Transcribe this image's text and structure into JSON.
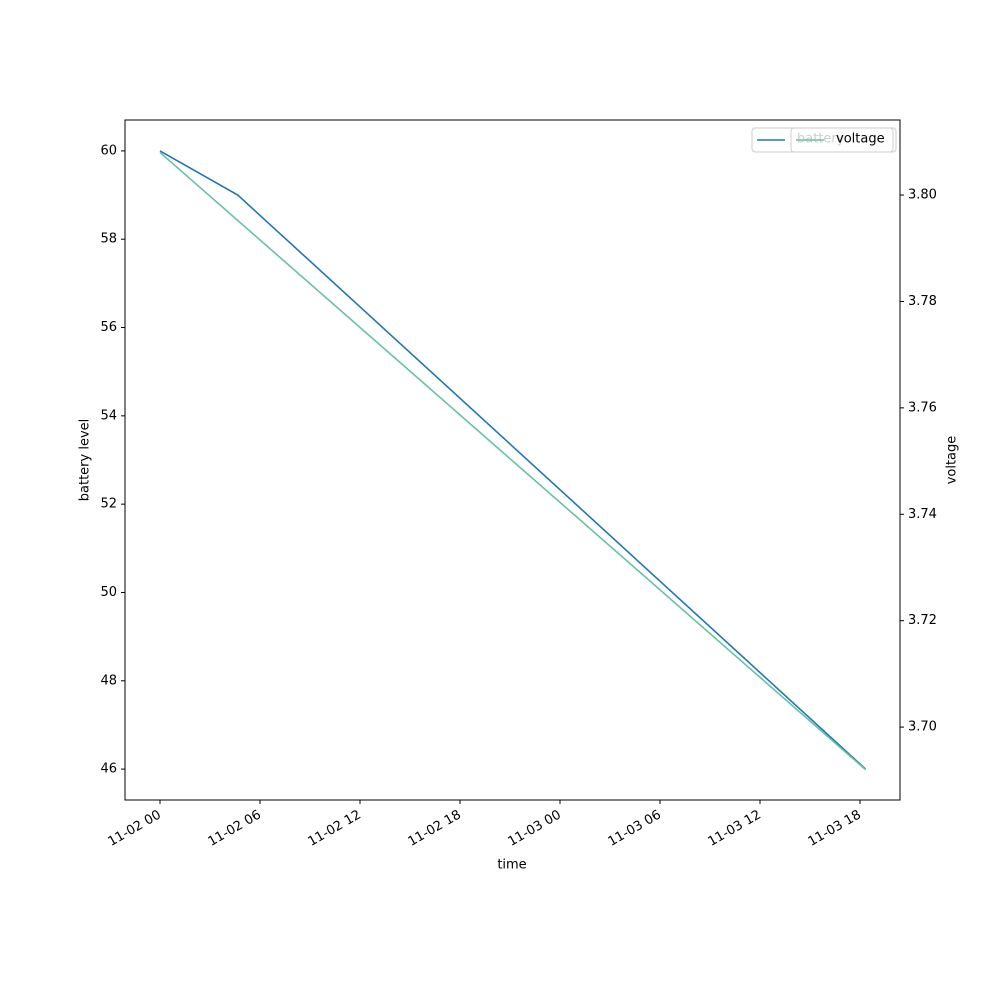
{
  "chart_data": {
    "type": "line",
    "x_label": "time",
    "y_label": "battery level",
    "y2_label": "voltage",
    "series": [
      {
        "name": "battery",
        "color": "#1f77b4",
        "x": [
          "11-02 00:00",
          "11-02 04:40",
          "11-03 18:20"
        ],
        "values": [
          60,
          59,
          46
        ]
      },
      {
        "name": "voltage",
        "color": "#66c2a5",
        "axis": "y2",
        "x": [
          "11-02 00:00",
          "11-03 18:20"
        ],
        "values": [
          3.808,
          3.692
        ]
      }
    ],
    "xlim": [
      "11-01 21:54",
      "11-03 20:24"
    ],
    "xticks": [
      {
        "value": "11-02 00:00",
        "label": "11-02 00"
      },
      {
        "value": "11-02 06:00",
        "label": "11-02 06"
      },
      {
        "value": "11-02 12:00",
        "label": "11-02 12"
      },
      {
        "value": "11-02 18:00",
        "label": "11-02 18"
      },
      {
        "value": "11-03 00:00",
        "label": "11-03 00"
      },
      {
        "value": "11-03 06:00",
        "label": "11-03 06"
      },
      {
        "value": "11-03 12:00",
        "label": "11-03 12"
      },
      {
        "value": "11-03 18:00",
        "label": "11-03 18"
      }
    ],
    "ylim": [
      45.3,
      60.7
    ],
    "yticks": [
      46,
      48,
      50,
      52,
      54,
      56,
      58,
      60
    ],
    "y2lim": [
      3.6863,
      3.8141
    ],
    "y2ticks": [
      {
        "value": 3.7,
        "label": "3.70"
      },
      {
        "value": 3.72,
        "label": "3.72"
      },
      {
        "value": 3.74,
        "label": "3.74"
      },
      {
        "value": 3.76,
        "label": "3.76"
      },
      {
        "value": 3.78,
        "label": "3.78"
      },
      {
        "value": 3.8,
        "label": "3.80"
      }
    ],
    "legend": "upper right",
    "grid": false
  }
}
